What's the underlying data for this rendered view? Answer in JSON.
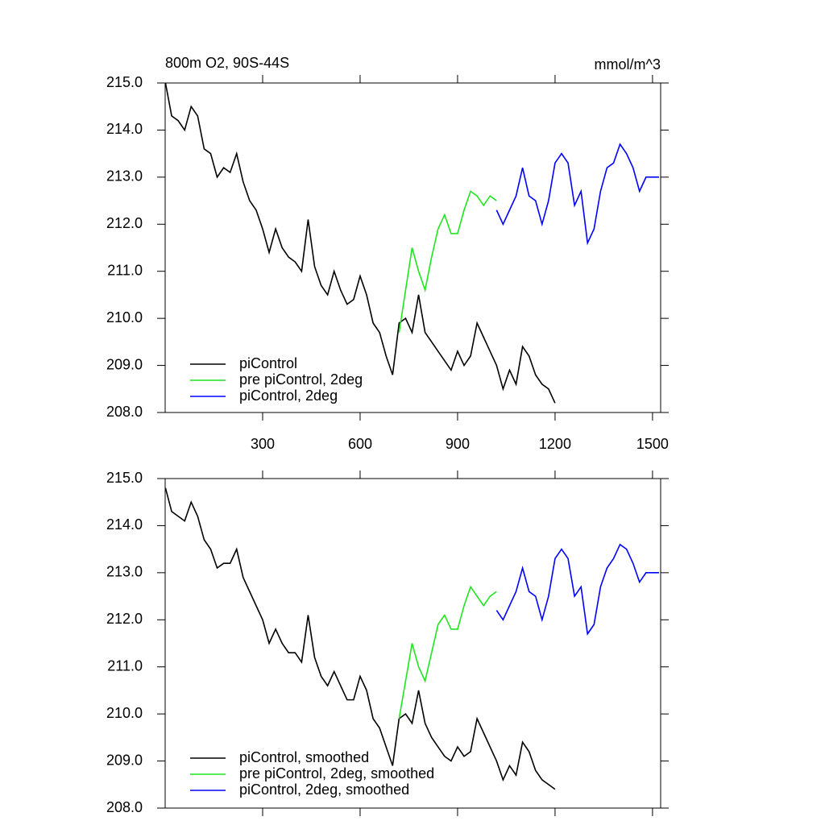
{
  "chart_data": [
    {
      "type": "line",
      "title": "800m O2, 90S-44S",
      "right_title": "mmol/m^3",
      "xlim": [
        0,
        1525
      ],
      "xticks": [
        300,
        600,
        900,
        1200,
        1500
      ],
      "ylim": [
        208,
        215
      ],
      "yticks": [
        {
          "value": 208,
          "label": "208.0"
        },
        {
          "value": 209,
          "label": "209.0"
        },
        {
          "value": 210,
          "label": "210.0"
        },
        {
          "value": 211,
          "label": "211.0"
        },
        {
          "value": 212,
          "label": "212.0"
        },
        {
          "value": 213,
          "label": "213.0"
        },
        {
          "value": 214,
          "label": "214.0"
        },
        {
          "value": 215,
          "label": "215.0"
        }
      ],
      "series": [
        {
          "name": "piControl",
          "color": "#000000",
          "x": [
            1,
            20,
            40,
            60,
            80,
            100,
            120,
            140,
            160,
            180,
            200,
            220,
            240,
            260,
            280,
            300,
            320,
            340,
            360,
            380,
            400,
            420,
            440,
            460,
            480,
            500,
            520,
            540,
            560,
            580,
            600,
            620,
            640,
            660,
            680,
            700,
            720,
            740,
            760,
            780,
            800,
            820,
            840,
            860,
            880,
            900,
            920,
            940,
            960,
            980,
            1000,
            1020,
            1040,
            1060,
            1080,
            1100,
            1120,
            1140,
            1160,
            1180,
            1200
          ],
          "values": [
            215.0,
            214.3,
            214.2,
            214.0,
            214.5,
            214.3,
            213.6,
            213.5,
            213.0,
            213.2,
            213.1,
            213.5,
            212.9,
            212.5,
            212.3,
            211.9,
            211.4,
            211.9,
            211.5,
            211.3,
            211.2,
            211.0,
            212.1,
            211.1,
            210.7,
            210.5,
            211.0,
            210.6,
            210.3,
            210.4,
            210.9,
            210.5,
            209.9,
            209.7,
            209.2,
            208.8,
            209.9,
            210.0,
            209.7,
            210.5,
            209.7,
            209.5,
            209.3,
            209.1,
            208.9,
            209.3,
            209.0,
            209.2,
            209.9,
            209.6,
            209.3,
            209.0,
            208.5,
            208.9,
            208.6,
            209.4,
            209.2,
            208.8,
            208.6,
            208.5,
            208.2
          ]
        },
        {
          "name": "pre piControl, 2deg",
          "color": "#1ee61e",
          "x": [
            720,
            740,
            760,
            780,
            800,
            820,
            840,
            860,
            880,
            900,
            920,
            940,
            960,
            980,
            1000,
            1020
          ],
          "values": [
            209.7,
            210.6,
            211.5,
            211.0,
            210.6,
            211.3,
            211.9,
            212.2,
            211.8,
            211.8,
            212.3,
            212.7,
            212.6,
            212.4,
            212.6,
            212.5
          ]
        },
        {
          "name": "piControl, 2deg",
          "color": "#0000ff",
          "x": [
            1020,
            1040,
            1060,
            1080,
            1100,
            1120,
            1140,
            1160,
            1180,
            1200,
            1220,
            1240,
            1260,
            1280,
            1300,
            1320,
            1340,
            1360,
            1380,
            1400,
            1420,
            1440,
            1460,
            1480,
            1500,
            1520
          ],
          "values": [
            212.3,
            212.0,
            212.3,
            212.6,
            213.2,
            212.6,
            212.5,
            212.0,
            212.5,
            213.3,
            213.5,
            213.3,
            212.4,
            212.7,
            211.6,
            211.9,
            212.7,
            213.2,
            213.3,
            213.7,
            213.5,
            213.2,
            212.7,
            213.0,
            213.0,
            213.0
          ]
        }
      ]
    },
    {
      "type": "line",
      "xlim": [
        0,
        1525
      ],
      "xticks": [
        300,
        600,
        900,
        1200,
        1500
      ],
      "ylim": [
        208,
        215
      ],
      "yticks": [
        {
          "value": 208,
          "label": "208.0"
        },
        {
          "value": 209,
          "label": "209.0"
        },
        {
          "value": 210,
          "label": "210.0"
        },
        {
          "value": 211,
          "label": "211.0"
        },
        {
          "value": 212,
          "label": "212.0"
        },
        {
          "value": 213,
          "label": "213.0"
        },
        {
          "value": 214,
          "label": "214.0"
        },
        {
          "value": 215,
          "label": "215.0"
        }
      ],
      "series": [
        {
          "name": "piControl, smoothed",
          "color": "#000000",
          "x": [
            1,
            20,
            40,
            60,
            80,
            100,
            120,
            140,
            160,
            180,
            200,
            220,
            240,
            260,
            280,
            300,
            320,
            340,
            360,
            380,
            400,
            420,
            440,
            460,
            480,
            500,
            520,
            540,
            560,
            580,
            600,
            620,
            640,
            660,
            680,
            700,
            720,
            740,
            760,
            780,
            800,
            820,
            840,
            860,
            880,
            900,
            920,
            940,
            960,
            980,
            1000,
            1020,
            1040,
            1060,
            1080,
            1100,
            1120,
            1140,
            1160,
            1180,
            1200
          ],
          "values": [
            214.8,
            214.3,
            214.2,
            214.1,
            214.5,
            214.2,
            213.7,
            213.5,
            213.1,
            213.2,
            213.2,
            213.5,
            212.9,
            212.6,
            212.3,
            212.0,
            211.5,
            211.8,
            211.5,
            211.3,
            211.3,
            211.1,
            212.1,
            211.2,
            210.8,
            210.6,
            210.9,
            210.6,
            210.3,
            210.3,
            210.8,
            210.5,
            209.9,
            209.7,
            209.3,
            208.9,
            209.9,
            210.0,
            209.8,
            210.5,
            209.8,
            209.5,
            209.3,
            209.1,
            209.0,
            209.3,
            209.1,
            209.2,
            209.9,
            209.6,
            209.3,
            209.0,
            208.6,
            208.9,
            208.7,
            209.4,
            209.2,
            208.8,
            208.6,
            208.5,
            208.4
          ]
        },
        {
          "name": "pre piControl, 2deg, smoothed",
          "color": "#1ee61e",
          "x": [
            720,
            740,
            760,
            780,
            800,
            820,
            840,
            860,
            880,
            900,
            920,
            940,
            960,
            980,
            1000,
            1020
          ],
          "values": [
            209.9,
            210.7,
            211.5,
            211.0,
            210.7,
            211.3,
            211.9,
            212.1,
            211.8,
            211.8,
            212.3,
            212.7,
            212.5,
            212.3,
            212.5,
            212.6
          ]
        },
        {
          "name": "piControl, 2deg, smoothed",
          "color": "#0000ff",
          "x": [
            1020,
            1040,
            1060,
            1080,
            1100,
            1120,
            1140,
            1160,
            1180,
            1200,
            1220,
            1240,
            1260,
            1280,
            1300,
            1320,
            1340,
            1360,
            1380,
            1400,
            1420,
            1440,
            1460,
            1480,
            1500,
            1520
          ],
          "values": [
            212.2,
            212.0,
            212.3,
            212.6,
            213.1,
            212.6,
            212.5,
            212.0,
            212.5,
            213.3,
            213.5,
            213.3,
            212.5,
            212.7,
            211.7,
            211.9,
            212.7,
            213.1,
            213.3,
            213.6,
            213.5,
            213.2,
            212.8,
            213.0,
            213.0,
            213.0
          ]
        }
      ]
    }
  ]
}
